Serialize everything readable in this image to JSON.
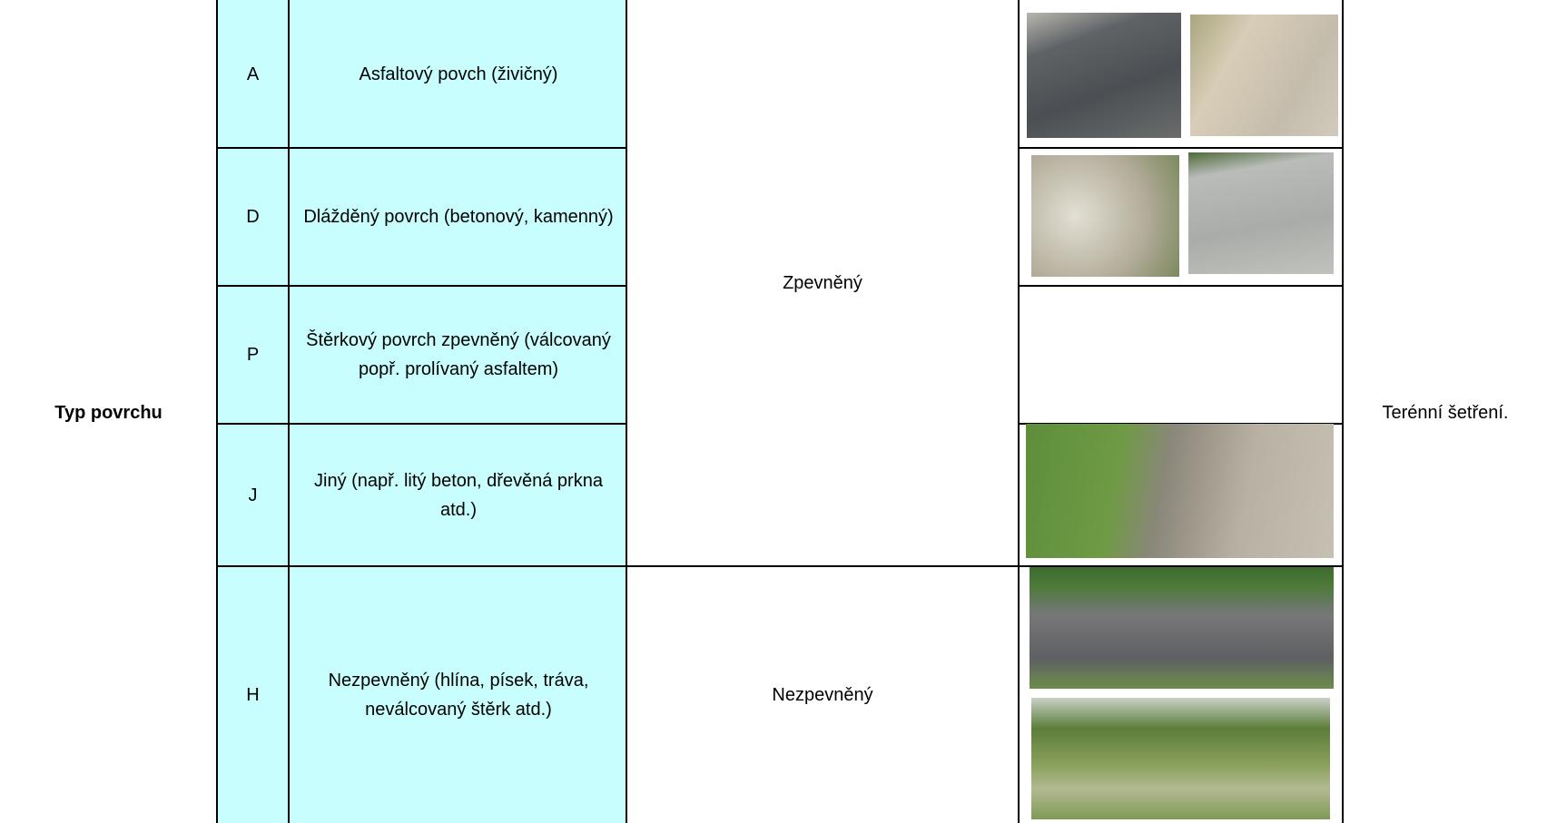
{
  "row_label": "Typ povrchu",
  "rows": [
    {
      "code": "A",
      "description": "Asfaltový povch (živičný)"
    },
    {
      "code": "D",
      "description": "Dlážděný povrch (betonový, kamenný)"
    },
    {
      "code": "P",
      "description": "Štěrkový povrch zpevněný (válcovaný popř. prolívaný asfaltem)"
    },
    {
      "code": "J",
      "description": "Jiný (např. litý beton, dřevěná prkna atd.)"
    },
    {
      "code": "H",
      "description": "Nezpevněný (hlína, písek, tráva, neválcovaný štěrk atd.)"
    }
  ],
  "groups": [
    "Zpevněný",
    "Nezpevněný"
  ],
  "source": "Terénní šetření."
}
